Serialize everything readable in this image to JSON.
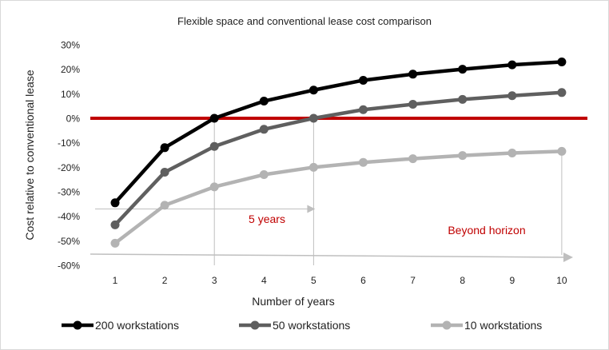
{
  "chart_data": {
    "type": "line",
    "title": "Flexible space and conventional lease cost comparison",
    "xlabel": "Number of years",
    "ylabel": "Cost relative to conventional lease",
    "categories": [
      "1",
      "2",
      "3",
      "4",
      "5",
      "6",
      "7",
      "8",
      "9",
      "10"
    ],
    "ylim": [
      -60,
      30
    ],
    "yticks": [
      30,
      20,
      10,
      0,
      -10,
      -20,
      -30,
      -40,
      -50,
      -60
    ],
    "ytick_labels": [
      "30%",
      "20%",
      "10%",
      "0%",
      "-10%",
      "-20%",
      "-30%",
      "-40%",
      "-50%",
      "-60%"
    ],
    "grid": false,
    "legend_position": "bottom",
    "reference_line": {
      "value": 0,
      "color": "#c00000"
    },
    "series": [
      {
        "name": "200 workstations",
        "color": "#000000",
        "values": [
          -34.5,
          -12,
          0,
          7,
          11.5,
          15.5,
          18,
          20,
          21.8,
          23
        ]
      },
      {
        "name": "50 workstations",
        "color": "#5f5f5f",
        "values": [
          -43.5,
          -22,
          -11.5,
          -4.5,
          0,
          3.5,
          5.7,
          7.7,
          9.2,
          10.5
        ]
      },
      {
        "name": "10 workstations",
        "color": "#b3b3b3",
        "values": [
          -51,
          -35.5,
          -28,
          -23,
          -20,
          -18,
          -16.5,
          -15.2,
          -14.2,
          -13.5
        ]
      }
    ],
    "annotations": {
      "horizon_label": "5 years",
      "horizon_x": 5,
      "beyond_label": "Beyond horizon",
      "label_color": "#c00000"
    },
    "guide_lines": [
      {
        "x": 3,
        "from_value": 0
      },
      {
        "x": 5,
        "from_value": 0
      }
    ]
  }
}
